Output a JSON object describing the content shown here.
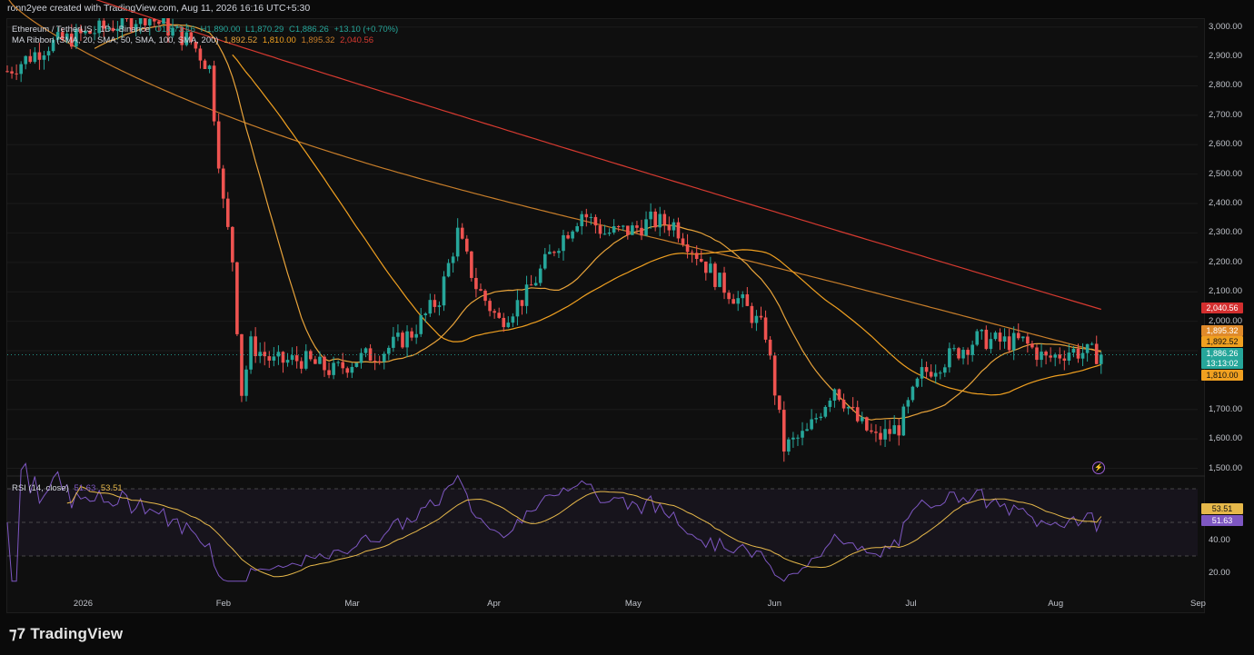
{
  "header": {
    "attribution": "ronn2yee created with TradingView.com, Aug 11, 2026 16:16 UTC+5:30"
  },
  "legend": {
    "symbol": "Ethereum / TetherUS · 1D · Binance",
    "open": "O1,873.16",
    "high": "H1,890.00",
    "low": "L1,870.29",
    "close": "C1,886.26",
    "change": "+13.10 (+0.70%)",
    "ma_label": "MA Ribbon (SMA, 20, SMA, 50, SMA, 100, SMA, 200)",
    "ma_values": [
      "1,892.52",
      "1,810.00",
      "1,895.32",
      "2,040.56"
    ]
  },
  "rsi": {
    "label": "RSI (14, close)",
    "value": "51.63",
    "ma_value": "53.51",
    "axis": [
      "40.00",
      "20.00"
    ]
  },
  "price_axis": [
    "3,000.00",
    "2,900.00",
    "2,800.00",
    "2,700.00",
    "2,600.00",
    "2,500.00",
    "2,400.00",
    "2,300.00",
    "2,200.00",
    "2,100.00",
    "2,000.00",
    "1,700.00",
    "1,600.00",
    "1,500.00"
  ],
  "price_tags": {
    "ma200": "2,040.56",
    "ma100": "1,895.32",
    "ma20": "1,892.52",
    "last": "1,886.26",
    "countdown": "13:13:02",
    "ma50": "1,810.00"
  },
  "time_axis": [
    "2026",
    "Feb",
    "Mar",
    "Apr",
    "May",
    "Jun",
    "Jul",
    "Aug",
    "Sep"
  ],
  "colors": {
    "up": "#26a69a",
    "down": "#ef5350",
    "ma20": "#e8a33a",
    "ma50": "#f0a020",
    "ma100": "#c87e2a",
    "ma200": "#d63a30",
    "rsi": "#7e57c2",
    "rsi_ma": "#e6b84a",
    "bg": "#0f0f0f"
  },
  "brand": "TradingView",
  "chart_data": {
    "type": "candlestick",
    "title": "Ethereum / TetherUS · 1D · Binance",
    "ylim": [
      1480,
      3030
    ],
    "x_range": [
      "2025-12-16",
      "2026-09-01"
    ],
    "close_series": [
      [
        "2025-12-16",
        2850
      ],
      [
        "2025-12-25",
        2940
      ],
      [
        "2026-01-05",
        2990
      ],
      [
        "2026-01-15",
        3040
      ],
      [
        "2026-01-25",
        2950
      ],
      [
        "2026-01-29",
        2860
      ],
      [
        "2026-02-01",
        2400
      ],
      [
        "2026-02-03",
        2210
      ],
      [
        "2026-02-05",
        1760
      ],
      [
        "2026-02-07",
        1920
      ],
      [
        "2026-02-12",
        1860
      ],
      [
        "2026-02-18",
        1870
      ],
      [
        "2026-02-25",
        1830
      ],
      [
        "2026-03-02",
        1870
      ],
      [
        "2026-03-08",
        1900
      ],
      [
        "2026-03-14",
        1960
      ],
      [
        "2026-03-20",
        2080
      ],
      [
        "2026-03-24",
        2300
      ],
      [
        "2026-03-28",
        2120
      ],
      [
        "2026-04-02",
        2000
      ],
      [
        "2026-04-08",
        2090
      ],
      [
        "2026-04-14",
        2250
      ],
      [
        "2026-04-20",
        2370
      ],
      [
        "2026-04-25",
        2300
      ],
      [
        "2026-05-01",
        2310
      ],
      [
        "2026-05-05",
        2340
      ],
      [
        "2026-05-10",
        2330
      ],
      [
        "2026-05-15",
        2230
      ],
      [
        "2026-05-20",
        2130
      ],
      [
        "2026-05-25",
        2060
      ],
      [
        "2026-05-30",
        1960
      ],
      [
        "2026-06-03",
        1570
      ],
      [
        "2026-06-08",
        1620
      ],
      [
        "2026-06-14",
        1780
      ],
      [
        "2026-06-19",
        1660
      ],
      [
        "2026-06-23",
        1600
      ],
      [
        "2026-06-28",
        1640
      ],
      [
        "2026-07-03",
        1820
      ],
      [
        "2026-07-09",
        1880
      ],
      [
        "2026-07-15",
        1940
      ],
      [
        "2026-07-20",
        1930
      ],
      [
        "2026-07-25",
        1930
      ],
      [
        "2026-07-30",
        1870
      ],
      [
        "2026-08-04",
        1900
      ],
      [
        "2026-08-09",
        1890
      ],
      [
        "2026-08-11",
        1886.26
      ]
    ],
    "ma20_end": 1892.52,
    "ma50_end": 1810.0,
    "ma100_end": 1895.32,
    "ma200_end": 2040.56,
    "rsi_last": 51.63,
    "rsi_ma_last": 53.51
  }
}
